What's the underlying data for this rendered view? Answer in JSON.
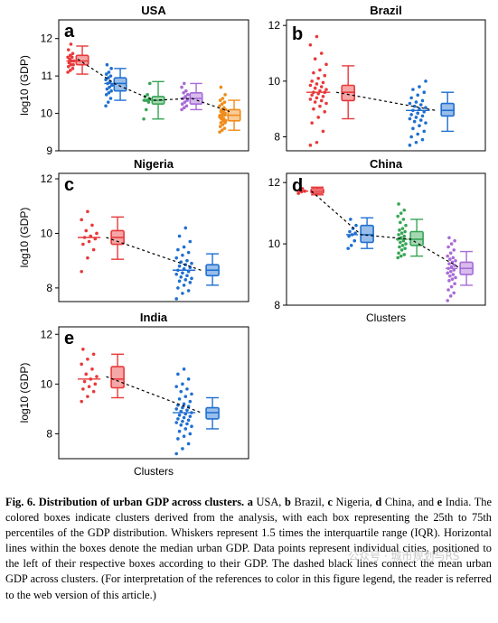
{
  "chart_data": [
    {
      "id": "a",
      "type": "box",
      "letter": "a",
      "title": "USA",
      "xlabel": "",
      "ylabel": "log10 (GDP)",
      "ylim": [
        9,
        12.5
      ],
      "yticks": [
        9,
        10,
        11,
        12
      ],
      "clusters": [
        {
          "color": "#e8393a",
          "q1": 11.3,
          "median": 11.4,
          "q3": 11.55,
          "whisker_low": 11.05,
          "whisker_high": 11.8,
          "mean": 11.45,
          "points": [
            11.1,
            11.15,
            11.2,
            11.25,
            11.3,
            11.3,
            11.35,
            11.4,
            11.4,
            11.45,
            11.5,
            11.5,
            11.55,
            11.6,
            11.7,
            11.85
          ]
        },
        {
          "color": "#1f6fd1",
          "q1": 10.6,
          "median": 10.8,
          "q3": 10.95,
          "whisker_low": 10.35,
          "whisker_high": 11.2,
          "mean": 10.78,
          "points": [
            10.2,
            10.3,
            10.4,
            10.5,
            10.55,
            10.6,
            10.65,
            10.7,
            10.75,
            10.8,
            10.85,
            10.9,
            10.95,
            11.0,
            11.05,
            11.1,
            11.2,
            11.3
          ]
        },
        {
          "color": "#36a655",
          "q1": 10.25,
          "median": 10.35,
          "q3": 10.45,
          "whisker_low": 9.85,
          "whisker_high": 10.85,
          "mean": 10.35,
          "points": [
            9.85,
            10.1,
            10.3,
            10.35,
            10.35,
            10.4,
            10.45,
            10.5,
            10.8
          ]
        },
        {
          "color": "#a76bd6",
          "q1": 10.25,
          "median": 10.4,
          "q3": 10.55,
          "whisker_low": 10.1,
          "whisker_high": 10.8,
          "mean": 10.4,
          "points": [
            10.1,
            10.15,
            10.2,
            10.25,
            10.3,
            10.35,
            10.4,
            10.45,
            10.5,
            10.55,
            10.6,
            10.7,
            10.8
          ]
        },
        {
          "color": "#f08c1a",
          "q1": 9.8,
          "median": 9.95,
          "q3": 10.1,
          "whisker_low": 9.55,
          "whisker_high": 10.35,
          "mean": 10.05,
          "points": [
            9.5,
            9.55,
            9.6,
            9.65,
            9.7,
            9.75,
            9.75,
            9.8,
            9.8,
            9.85,
            9.85,
            9.9,
            9.9,
            9.95,
            9.95,
            10.0,
            10.0,
            10.05,
            10.05,
            10.1,
            10.1,
            10.15,
            10.2,
            10.25,
            10.3,
            10.35,
            10.4,
            10.5,
            10.7
          ]
        }
      ]
    },
    {
      "id": "b",
      "type": "box",
      "letter": "b",
      "title": "Brazil",
      "xlabel": "",
      "ylabel": "",
      "ylim": [
        7.5,
        12.2
      ],
      "yticks": [
        8,
        10,
        12
      ],
      "clusters": [
        {
          "color": "#e8393a",
          "q1": 9.3,
          "median": 9.6,
          "q3": 9.85,
          "whisker_low": 8.65,
          "whisker_high": 10.55,
          "mean": 9.6,
          "points": [
            7.7,
            7.8,
            8.2,
            8.5,
            8.7,
            8.9,
            9.0,
            9.1,
            9.2,
            9.25,
            9.3,
            9.35,
            9.4,
            9.45,
            9.5,
            9.55,
            9.6,
            9.6,
            9.65,
            9.7,
            9.75,
            9.8,
            9.85,
            9.9,
            9.95,
            10.0,
            10.1,
            10.2,
            10.3,
            10.4,
            10.6,
            10.8,
            11.0,
            11.3,
            11.6
          ]
        },
        {
          "color": "#1f6fd1",
          "q1": 8.75,
          "median": 8.95,
          "q3": 9.2,
          "whisker_low": 8.2,
          "whisker_high": 9.6,
          "mean": 8.95,
          "points": [
            7.7,
            7.8,
            7.9,
            8.0,
            8.1,
            8.2,
            8.3,
            8.4,
            8.5,
            8.55,
            8.6,
            8.65,
            8.7,
            8.75,
            8.8,
            8.85,
            8.9,
            8.95,
            9.0,
            9.05,
            9.1,
            9.15,
            9.2,
            9.25,
            9.3,
            9.4,
            9.5,
            9.6,
            9.7,
            9.8,
            10.0
          ]
        }
      ]
    },
    {
      "id": "c",
      "type": "box",
      "letter": "c",
      "title": "Nigeria",
      "xlabel": "",
      "ylabel": "log10 (GDP)",
      "ylim": [
        7.5,
        12.2
      ],
      "yticks": [
        8,
        10,
        12
      ],
      "clusters": [
        {
          "color": "#e8393a",
          "q1": 9.6,
          "median": 9.85,
          "q3": 10.1,
          "whisker_low": 9.05,
          "whisker_high": 10.6,
          "mean": 9.85,
          "points": [
            8.6,
            9.1,
            9.4,
            9.6,
            9.7,
            9.8,
            9.85,
            9.9,
            10.0,
            10.1,
            10.3,
            10.5,
            10.8
          ]
        },
        {
          "color": "#1f6fd1",
          "q1": 8.45,
          "median": 8.65,
          "q3": 8.85,
          "whisker_low": 8.1,
          "whisker_high": 9.25,
          "mean": 8.65,
          "points": [
            7.6,
            7.8,
            7.9,
            8.0,
            8.1,
            8.2,
            8.25,
            8.3,
            8.35,
            8.4,
            8.45,
            8.5,
            8.55,
            8.6,
            8.65,
            8.7,
            8.75,
            8.8,
            8.85,
            8.9,
            8.95,
            9.0,
            9.1,
            9.2,
            9.3,
            9.4,
            9.5,
            9.7,
            9.9,
            10.2
          ]
        }
      ]
    },
    {
      "id": "d",
      "type": "box",
      "letter": "d",
      "title": "China",
      "xlabel": "Clusters",
      "ylabel": "",
      "ylim": [
        8,
        12.3
      ],
      "yticks": [
        8,
        10,
        12
      ],
      "clusters": [
        {
          "color": "#e8393a",
          "q1": 11.65,
          "median": 11.72,
          "q3": 11.8,
          "whisker_low": 11.6,
          "whisker_high": 11.85,
          "mean": 11.72,
          "points": [
            11.65,
            11.7,
            11.72,
            11.75,
            11.8
          ]
        },
        {
          "color": "#1f6fd1",
          "q1": 10.05,
          "median": 10.3,
          "q3": 10.6,
          "whisker_low": 9.85,
          "whisker_high": 10.85,
          "mean": 10.3,
          "points": [
            9.85,
            9.95,
            10.1,
            10.25,
            10.3,
            10.35,
            10.4,
            10.5,
            10.6,
            10.8
          ]
        },
        {
          "color": "#36a655",
          "q1": 9.95,
          "median": 10.15,
          "q3": 10.4,
          "whisker_low": 9.6,
          "whisker_high": 10.8,
          "mean": 10.15,
          "points": [
            9.55,
            9.6,
            9.65,
            9.7,
            9.8,
            9.85,
            9.9,
            9.95,
            10.0,
            10.05,
            10.1,
            10.15,
            10.2,
            10.25,
            10.3,
            10.35,
            10.4,
            10.45,
            10.5,
            10.6,
            10.7,
            10.8,
            10.9,
            11.0,
            11.1,
            11.3
          ]
        },
        {
          "color": "#a76bd6",
          "q1": 9.0,
          "median": 9.2,
          "q3": 9.4,
          "whisker_low": 8.65,
          "whisker_high": 9.75,
          "mean": 9.2,
          "points": [
            8.15,
            8.3,
            8.4,
            8.5,
            8.6,
            8.7,
            8.8,
            8.85,
            8.9,
            8.95,
            9.0,
            9.05,
            9.1,
            9.15,
            9.2,
            9.25,
            9.3,
            9.35,
            9.4,
            9.45,
            9.5,
            9.55,
            9.6,
            9.7,
            9.8,
            9.9,
            10.0,
            10.1,
            10.2
          ]
        }
      ]
    },
    {
      "id": "e",
      "type": "box",
      "letter": "e",
      "title": "India",
      "xlabel": "Clusters",
      "ylabel": "log10 (GDP)",
      "ylim": [
        7,
        12.3
      ],
      "yticks": [
        8,
        10,
        12
      ],
      "clusters": [
        {
          "color": "#e8393a",
          "q1": 9.85,
          "median": 10.2,
          "q3": 10.7,
          "whisker_low": 9.45,
          "whisker_high": 11.2,
          "mean": 10.3,
          "points": [
            9.3,
            9.5,
            9.7,
            9.8,
            9.9,
            10.0,
            10.1,
            10.2,
            10.3,
            10.4,
            10.6,
            10.8,
            11.0,
            11.2,
            11.4
          ]
        },
        {
          "color": "#1f6fd1",
          "q1": 8.6,
          "median": 8.85,
          "q3": 9.05,
          "whisker_low": 8.2,
          "whisker_high": 9.45,
          "mean": 8.85,
          "points": [
            7.2,
            7.4,
            7.6,
            7.8,
            7.9,
            8.0,
            8.1,
            8.2,
            8.3,
            8.35,
            8.4,
            8.45,
            8.5,
            8.55,
            8.6,
            8.65,
            8.7,
            8.75,
            8.8,
            8.85,
            8.9,
            8.95,
            9.0,
            9.05,
            9.1,
            9.15,
            9.2,
            9.3,
            9.4,
            9.5,
            9.6,
            9.7,
            9.8,
            9.9,
            10.0,
            10.2,
            10.4,
            10.6
          ]
        }
      ]
    }
  ],
  "caption": {
    "label": "Fig. 6.",
    "title": "Distribution of urban GDP across clusters.",
    "s1_a": "a",
    "s1_a_text": " USA, ",
    "s1_b": "b",
    "s1_b_text": " Brazil, ",
    "s1_c": "c",
    "s1_c_text": " Nigeria, ",
    "s1_d": "d",
    "s1_d_text": " China, and ",
    "s1_e": "e",
    "s1_e_text": " India.",
    "body": " The colored boxes indicate clusters derived from the analysis, with each box representing the 25th to 75th percentiles of the GDP distribution. Whiskers represent 1.5 times the interquartile range (IQR). Horizontal lines within the boxes denote the median urban GDP. Data points represent individual cities, positioned to the left of their respective boxes according to their GDP. The dashed black lines connect the mean urban GDP across clusters.  (For interpretation of the references to color in this figure legend, the reader is referred to the web version of this article.)"
  },
  "watermark": "公众号 · 城市规划与RS"
}
